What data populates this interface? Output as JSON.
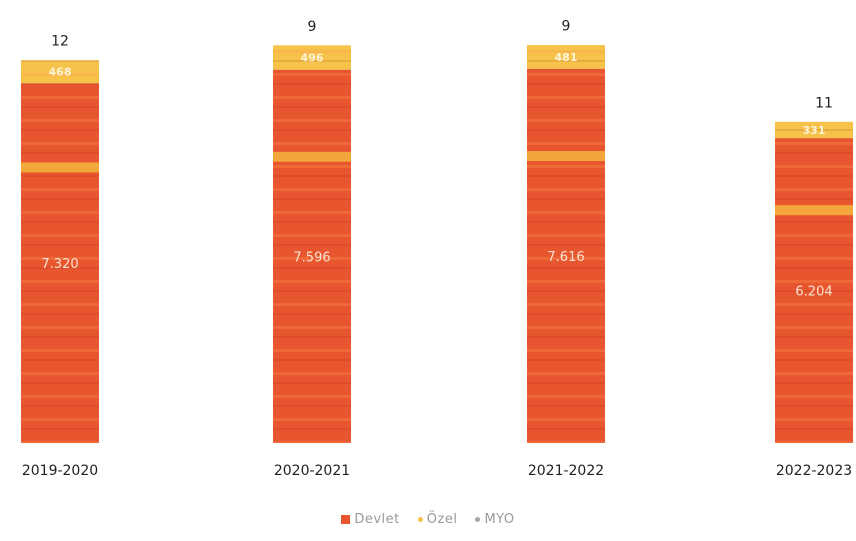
{
  "chart_data": {
    "type": "bar",
    "stacked": true,
    "categories": [
      "2019-2020",
      "2020-2021",
      "2021-2022",
      "2022-2023"
    ],
    "series": [
      {
        "name": "Devlet",
        "color": "#e8562f",
        "values": [
          7320,
          7596,
          7616,
          6204
        ]
      },
      {
        "name": "Özel",
        "color": "#f6c24a",
        "values": [
          468,
          496,
          481,
          331
        ]
      },
      {
        "name": "MYO",
        "color": "#a6a6a6",
        "values": [
          12,
          9,
          9,
          11
        ]
      }
    ],
    "data_labels": {
      "Devlet": [
        "7.320",
        "7.596",
        "7.616",
        "6.204"
      ],
      "Özel": [
        "468",
        "496",
        "481",
        "331"
      ],
      "MYO": [
        "12",
        "9",
        "9",
        "11"
      ]
    },
    "ylim": [
      0,
      8200
    ],
    "legend_position": "bottom"
  }
}
